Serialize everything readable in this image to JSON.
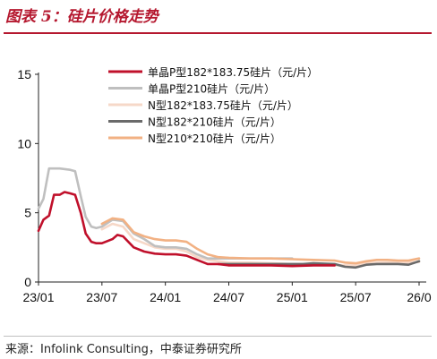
{
  "figure": {
    "title": "图表 5：硅片价格走势",
    "source": "来源：Infolink Consulting，中泰证券研究所"
  },
  "chart_data": {
    "type": "line",
    "x_start": "2023-01",
    "x_end": "2026-01",
    "xticks": [
      "23/01",
      "23/07",
      "24/01",
      "24/07",
      "25/01",
      "25/07",
      "26/0"
    ],
    "yticks": [
      "0",
      "5",
      "10",
      "15"
    ],
    "ylim": [
      0,
      15
    ],
    "grid": false,
    "legend_position": "top-center",
    "series": [
      {
        "name": "单晶P型182*183.75硅片（元/片）",
        "color": "#c0102b",
        "points": [
          [
            "2023-01",
            3.7
          ],
          [
            "2023-01-15",
            4.5
          ],
          [
            "2023-02",
            4.8
          ],
          [
            "2023-02-15",
            6.3
          ],
          [
            "2023-03",
            6.3
          ],
          [
            "2023-03-15",
            6.5
          ],
          [
            "2023-04",
            6.4
          ],
          [
            "2023-04-15",
            6.3
          ],
          [
            "2023-05",
            5.0
          ],
          [
            "2023-05-15",
            3.5
          ],
          [
            "2023-06",
            2.9
          ],
          [
            "2023-06-15",
            2.8
          ],
          [
            "2023-07",
            2.8
          ],
          [
            "2023-08",
            3.1
          ],
          [
            "2023-08-15",
            3.4
          ],
          [
            "2023-09",
            3.3
          ],
          [
            "2023-10",
            2.5
          ],
          [
            "2023-11",
            2.2
          ],
          [
            "2023-12",
            2.05
          ],
          [
            "2024-01",
            2.0
          ],
          [
            "2024-02",
            2.0
          ],
          [
            "2024-03",
            1.9
          ],
          [
            "2024-04",
            1.6
          ],
          [
            "2024-05",
            1.3
          ],
          [
            "2024-06",
            1.3
          ],
          [
            "2024-07",
            1.2
          ],
          [
            "2024-09",
            1.2
          ],
          [
            "2024-11",
            1.2
          ],
          [
            "2025-01",
            1.15
          ],
          [
            "2025-03",
            1.2
          ],
          [
            "2025-05",
            1.2
          ]
        ]
      },
      {
        "name": "单晶P型210硅片（元/片）",
        "color": "#bfbfbf",
        "points": [
          [
            "2023-01",
            5.3
          ],
          [
            "2023-01-15",
            6.0
          ],
          [
            "2023-02",
            8.2
          ],
          [
            "2023-03",
            8.2
          ],
          [
            "2023-04",
            8.1
          ],
          [
            "2023-04-15",
            8.0
          ],
          [
            "2023-05",
            6.2
          ],
          [
            "2023-05-15",
            4.7
          ],
          [
            "2023-06",
            4.0
          ],
          [
            "2023-06-15",
            3.9
          ],
          [
            "2023-07",
            4.0
          ],
          [
            "2023-08",
            4.5
          ],
          [
            "2023-09",
            4.4
          ],
          [
            "2023-10",
            3.5
          ],
          [
            "2023-11",
            3.1
          ],
          [
            "2023-12",
            2.6
          ],
          [
            "2024-01",
            2.5
          ],
          [
            "2024-02",
            2.5
          ],
          [
            "2024-03",
            2.4
          ],
          [
            "2024-04",
            2.0
          ],
          [
            "2024-05",
            1.7
          ],
          [
            "2024-06",
            1.7
          ],
          [
            "2024-07",
            1.7
          ],
          [
            "2024-09",
            1.7
          ],
          [
            "2024-11",
            1.7
          ],
          [
            "2025-01",
            1.7
          ]
        ]
      },
      {
        "name": "N型182*183.75硅片（元/片）",
        "color": "#f6d8c8",
        "points": [
          [
            "2023-07",
            3.8
          ],
          [
            "2023-08",
            4.2
          ],
          [
            "2023-09",
            4.0
          ],
          [
            "2023-10",
            3.1
          ],
          [
            "2023-11",
            2.8
          ],
          [
            "2023-12",
            2.5
          ],
          [
            "2024-01",
            2.4
          ],
          [
            "2024-02",
            2.4
          ],
          [
            "2024-03",
            2.2
          ],
          [
            "2024-04",
            1.8
          ],
          [
            "2024-05",
            1.6
          ],
          [
            "2024-06",
            1.5
          ],
          [
            "2024-07",
            1.4
          ],
          [
            "2024-09",
            1.4
          ],
          [
            "2024-11",
            1.35
          ],
          [
            "2025-01",
            1.3
          ],
          [
            "2025-03",
            1.3
          ],
          [
            "2025-05",
            1.2
          ],
          [
            "2025-07",
            1.2
          ],
          [
            "2025-08",
            1.35
          ],
          [
            "2025-10",
            1.4
          ],
          [
            "2025-12",
            1.4
          ],
          [
            "2026-01",
            1.45
          ]
        ]
      },
      {
        "name": "N型182*210硅片（元/片）",
        "color": "#6a6a6a",
        "points": [
          [
            "2024-06",
            1.3
          ],
          [
            "2024-07",
            1.3
          ],
          [
            "2024-09",
            1.3
          ],
          [
            "2024-11",
            1.3
          ],
          [
            "2025-01",
            1.3
          ],
          [
            "2025-02",
            1.3
          ],
          [
            "2025-03",
            1.35
          ],
          [
            "2025-05",
            1.3
          ],
          [
            "2025-06",
            1.1
          ],
          [
            "2025-07",
            1.05
          ],
          [
            "2025-08",
            1.25
          ],
          [
            "2025-09",
            1.3
          ],
          [
            "2025-10",
            1.3
          ],
          [
            "2025-11",
            1.3
          ],
          [
            "2025-12",
            1.25
          ],
          [
            "2026-01",
            1.5
          ]
        ]
      },
      {
        "name": "N型210*210硅片（元/片）",
        "color": "#f2b183",
        "points": [
          [
            "2023-07",
            4.2
          ],
          [
            "2023-08",
            4.6
          ],
          [
            "2023-09",
            4.5
          ],
          [
            "2023-10",
            3.6
          ],
          [
            "2023-11",
            3.3
          ],
          [
            "2023-12",
            3.1
          ],
          [
            "2024-01",
            3.0
          ],
          [
            "2024-02",
            3.0
          ],
          [
            "2024-03",
            2.9
          ],
          [
            "2024-04",
            2.4
          ],
          [
            "2024-05",
            2.0
          ],
          [
            "2024-06",
            1.8
          ],
          [
            "2024-07",
            1.75
          ],
          [
            "2024-09",
            1.7
          ],
          [
            "2024-11",
            1.7
          ],
          [
            "2025-01",
            1.65
          ],
          [
            "2025-03",
            1.6
          ],
          [
            "2025-05",
            1.55
          ],
          [
            "2025-06",
            1.4
          ],
          [
            "2025-07",
            1.35
          ],
          [
            "2025-08",
            1.5
          ],
          [
            "2025-09",
            1.6
          ],
          [
            "2025-10",
            1.6
          ],
          [
            "2025-11",
            1.55
          ],
          [
            "2025-12",
            1.55
          ],
          [
            "2026-01",
            1.7
          ]
        ]
      }
    ]
  }
}
